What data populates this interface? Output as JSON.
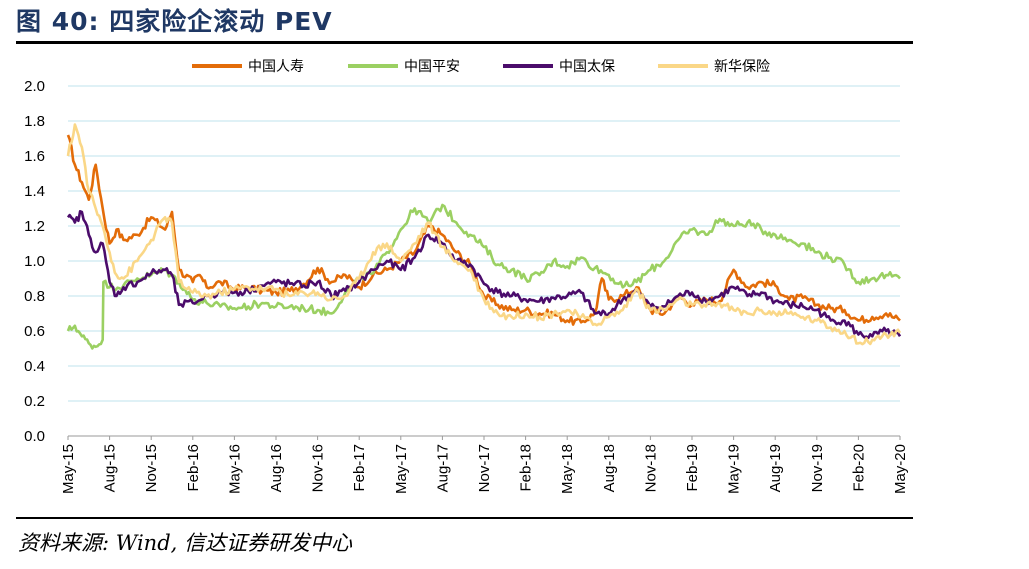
{
  "figure": {
    "title": "图 40: 四家险企滚动 PEV",
    "source": "资料来源: Wind, 信达证券研发中心"
  },
  "chart_data": {
    "type": "line",
    "title": "四家险企滚动 PEV",
    "xlabel": "",
    "ylabel": "",
    "ylim": [
      0,
      2.0
    ],
    "yticks": [
      "0.0",
      "0.2",
      "0.4",
      "0.6",
      "0.8",
      "1.0",
      "1.2",
      "1.4",
      "1.6",
      "1.8",
      "2.0"
    ],
    "grid": true,
    "legend_position": "top",
    "x_tick_labels": [
      "May-15",
      "Aug-15",
      "Nov-15",
      "Feb-16",
      "May-16",
      "Aug-16",
      "Nov-16",
      "Feb-17",
      "May-17",
      "Aug-17",
      "Nov-17",
      "Feb-18",
      "May-18",
      "Aug-18",
      "Nov-18",
      "Feb-19",
      "May-19",
      "Aug-19",
      "Nov-19",
      "Feb-20",
      "May-20"
    ],
    "x_month_index_range": [
      0,
      60
    ],
    "series": [
      {
        "name": "中国人寿",
        "color": "#e36c09",
        "x": [
          0,
          0.5,
          1,
          1.5,
          2,
          2.5,
          3,
          3.5,
          4,
          5,
          6,
          7,
          7.5,
          8,
          9,
          9.5,
          10,
          11,
          12,
          13,
          14,
          15,
          16,
          17,
          18,
          19,
          20,
          21,
          22,
          23,
          24,
          25,
          26,
          27,
          28,
          29,
          30,
          31,
          32,
          33,
          34,
          35,
          36,
          37,
          38,
          38.5,
          39,
          40,
          41,
          42,
          43,
          44,
          45,
          46,
          47,
          48,
          49,
          50,
          51,
          52,
          53,
          54,
          55,
          56,
          57,
          58,
          59,
          60
        ],
        "y": [
          1.72,
          1.55,
          1.45,
          1.35,
          1.55,
          1.3,
          1.1,
          1.18,
          1.12,
          1.15,
          1.25,
          1.18,
          1.28,
          0.95,
          0.88,
          0.92,
          0.85,
          0.88,
          0.84,
          0.85,
          0.83,
          0.82,
          0.83,
          0.87,
          0.96,
          0.88,
          0.92,
          0.85,
          0.92,
          0.95,
          1.0,
          1.05,
          1.2,
          1.15,
          1.05,
          0.98,
          0.8,
          0.75,
          0.72,
          0.72,
          0.7,
          0.7,
          0.66,
          0.65,
          0.7,
          0.9,
          0.78,
          0.8,
          0.85,
          0.72,
          0.7,
          0.8,
          0.75,
          0.78,
          0.77,
          0.95,
          0.85,
          0.88,
          0.86,
          0.78,
          0.79,
          0.75,
          0.73,
          0.72,
          0.66,
          0.68,
          0.7,
          0.66
        ]
      },
      {
        "name": "中国平安",
        "color": "#9bd062",
        "x": [
          0,
          0.5,
          1,
          1.5,
          2,
          2.5,
          2.55,
          3,
          4,
          5,
          6,
          7,
          8,
          9,
          10,
          11,
          12,
          13,
          14,
          15,
          16,
          17,
          18,
          19,
          20,
          21,
          22,
          23,
          24,
          25,
          26,
          27,
          28,
          29,
          30,
          31,
          32,
          33,
          34,
          35,
          36,
          37,
          38,
          39,
          40,
          41,
          42,
          43,
          44,
          45,
          46,
          47,
          48,
          49,
          50,
          51,
          52,
          53,
          54,
          55,
          56,
          57,
          58,
          59,
          60
        ],
        "y": [
          0.6,
          0.63,
          0.57,
          0.53,
          0.51,
          0.55,
          0.88,
          0.85,
          0.86,
          0.9,
          0.92,
          0.95,
          0.88,
          0.78,
          0.76,
          0.74,
          0.73,
          0.74,
          0.76,
          0.74,
          0.74,
          0.73,
          0.72,
          0.7,
          0.82,
          0.9,
          0.93,
          1.05,
          1.18,
          1.3,
          1.22,
          1.32,
          1.22,
          1.15,
          1.08,
          0.98,
          0.95,
          0.9,
          0.92,
          1.0,
          0.97,
          1.02,
          0.96,
          0.92,
          0.85,
          0.88,
          0.95,
          1.0,
          1.12,
          1.18,
          1.15,
          1.24,
          1.2,
          1.22,
          1.18,
          1.15,
          1.12,
          1.1,
          1.05,
          1.02,
          0.98,
          0.88,
          0.9,
          0.92,
          0.9
        ]
      },
      {
        "name": "中国太保",
        "color": "#4b0c6b",
        "x": [
          0,
          0.5,
          1,
          1.5,
          2,
          2.5,
          3,
          3.5,
          4,
          5,
          6,
          7,
          7.5,
          8,
          9,
          10,
          11,
          12,
          13,
          14,
          15,
          16,
          17,
          18,
          19,
          20,
          21,
          22,
          23,
          24,
          25,
          26,
          27,
          28,
          29,
          30,
          31,
          32,
          33,
          34,
          35,
          36,
          37,
          38,
          39,
          40,
          41,
          42,
          43,
          44,
          45,
          46,
          47,
          48,
          49,
          50,
          51,
          52,
          53,
          54,
          55,
          56,
          57,
          58,
          59,
          60
        ],
        "y": [
          1.25,
          1.22,
          1.28,
          1.15,
          1.05,
          1.1,
          0.88,
          0.8,
          0.85,
          0.88,
          0.93,
          0.95,
          0.92,
          0.75,
          0.76,
          0.8,
          0.82,
          0.82,
          0.83,
          0.86,
          0.88,
          0.87,
          0.86,
          0.88,
          0.8,
          0.83,
          0.88,
          0.95,
          1.0,
          0.95,
          1.02,
          1.15,
          1.1,
          1.0,
          0.98,
          0.87,
          0.82,
          0.8,
          0.78,
          0.77,
          0.79,
          0.8,
          0.82,
          0.7,
          0.7,
          0.78,
          0.83,
          0.74,
          0.74,
          0.8,
          0.82,
          0.77,
          0.8,
          0.85,
          0.8,
          0.82,
          0.77,
          0.75,
          0.74,
          0.72,
          0.66,
          0.66,
          0.58,
          0.57,
          0.6,
          0.57
        ]
      },
      {
        "name": "新华保险",
        "color": "#fad787",
        "x": [
          0,
          0.5,
          1,
          1.5,
          2,
          2.5,
          3,
          3.5,
          4,
          5,
          6,
          7,
          7.5,
          8,
          9,
          10,
          11,
          12,
          13,
          14,
          15,
          16,
          17,
          18,
          19,
          20,
          21,
          22,
          23,
          24,
          25,
          26,
          27,
          28,
          29,
          30,
          31,
          32,
          33,
          34,
          35,
          36,
          37,
          38,
          39,
          40,
          41,
          42,
          43,
          44,
          45,
          46,
          47,
          48,
          49,
          50,
          51,
          52,
          53,
          54,
          55,
          56,
          57,
          58,
          59,
          60
        ],
        "y": [
          1.6,
          1.78,
          1.65,
          1.4,
          1.3,
          1.2,
          1.05,
          0.92,
          0.9,
          1.0,
          1.12,
          1.25,
          1.22,
          0.88,
          0.82,
          0.8,
          0.82,
          0.84,
          0.85,
          0.84,
          0.84,
          0.8,
          0.82,
          0.82,
          0.78,
          0.8,
          0.9,
          1.05,
          1.1,
          1.0,
          1.1,
          1.22,
          1.08,
          1.0,
          0.95,
          0.78,
          0.7,
          0.68,
          0.7,
          0.68,
          0.7,
          0.72,
          0.68,
          0.64,
          0.68,
          0.72,
          0.84,
          0.72,
          0.72,
          0.78,
          0.75,
          0.74,
          0.76,
          0.72,
          0.7,
          0.72,
          0.7,
          0.7,
          0.68,
          0.66,
          0.62,
          0.6,
          0.53,
          0.55,
          0.58,
          0.59
        ]
      }
    ]
  }
}
